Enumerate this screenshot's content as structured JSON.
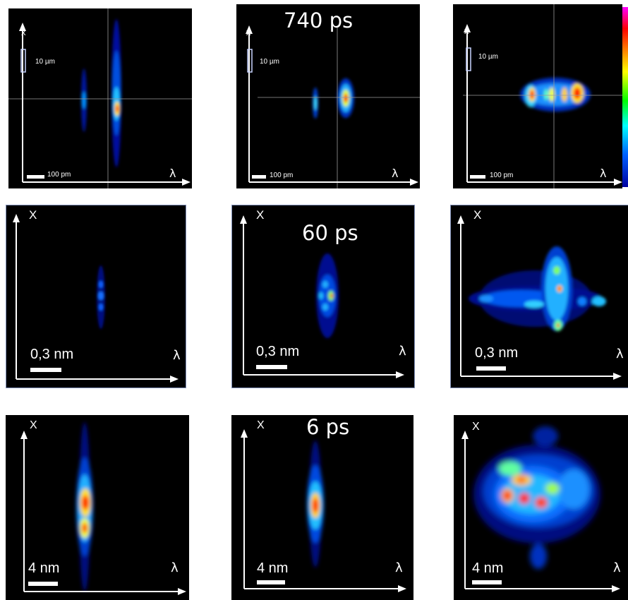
{
  "time_labels": [
    "740 ps",
    "60 ps",
    "6 ps"
  ],
  "axis_labels": {
    "space": "x",
    "spectral": "λ",
    "space_row2": "X",
    "space_row3": "X"
  },
  "scales": {
    "row1_space": "10 µm",
    "row1_spectral": "100 pm",
    "row2_spectral": "0,3 nm",
    "row3_spectral": "4 nm"
  },
  "colors": {
    "background": "#000000",
    "axis": "#ffffff",
    "panel_border": "#7f8fb8"
  },
  "colormap": "jet"
}
